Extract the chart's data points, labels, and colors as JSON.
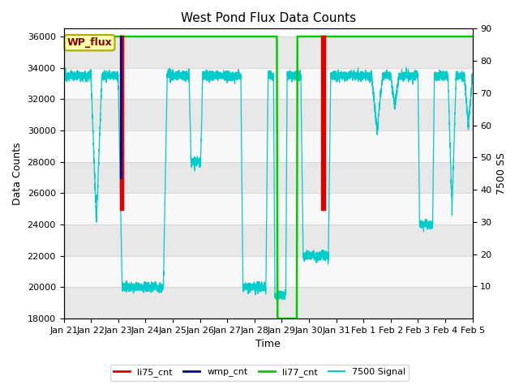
{
  "title": "West Pond Flux Data Counts",
  "xlabel": "Time",
  "ylabel_left": "Data Counts",
  "ylabel_right": "7500 SS",
  "ylim_left": [
    18000,
    36000
  ],
  "ylim_right": [
    0,
    90
  ],
  "xtick_labels": [
    "Jan 21",
    "Jan 22",
    "Jan 23",
    "Jan 24",
    "Jan 25",
    "Jan 26",
    "Jan 27",
    "Jan 28",
    "Jan 29",
    "Jan 30",
    "Jan 31",
    "Feb 1",
    "Feb 2",
    "Feb 3",
    "Feb 4",
    "Feb 5"
  ],
  "yticks_left": [
    18000,
    20000,
    22000,
    24000,
    26000,
    28000,
    30000,
    32000,
    34000,
    36000
  ],
  "yticks_right": [
    10,
    20,
    30,
    40,
    50,
    60,
    70,
    80,
    90
  ],
  "wp_flux_label": "WP_flux",
  "bg_band_colors": [
    "#e8e8e8",
    "#f8f8f8"
  ],
  "li75_color": "#dd0000",
  "wmp_color": "#000099",
  "li77_color": "#00cc00",
  "cyan_color": "#00cccc",
  "title_fontsize": 11,
  "tick_fontsize": 8,
  "label_fontsize": 9
}
